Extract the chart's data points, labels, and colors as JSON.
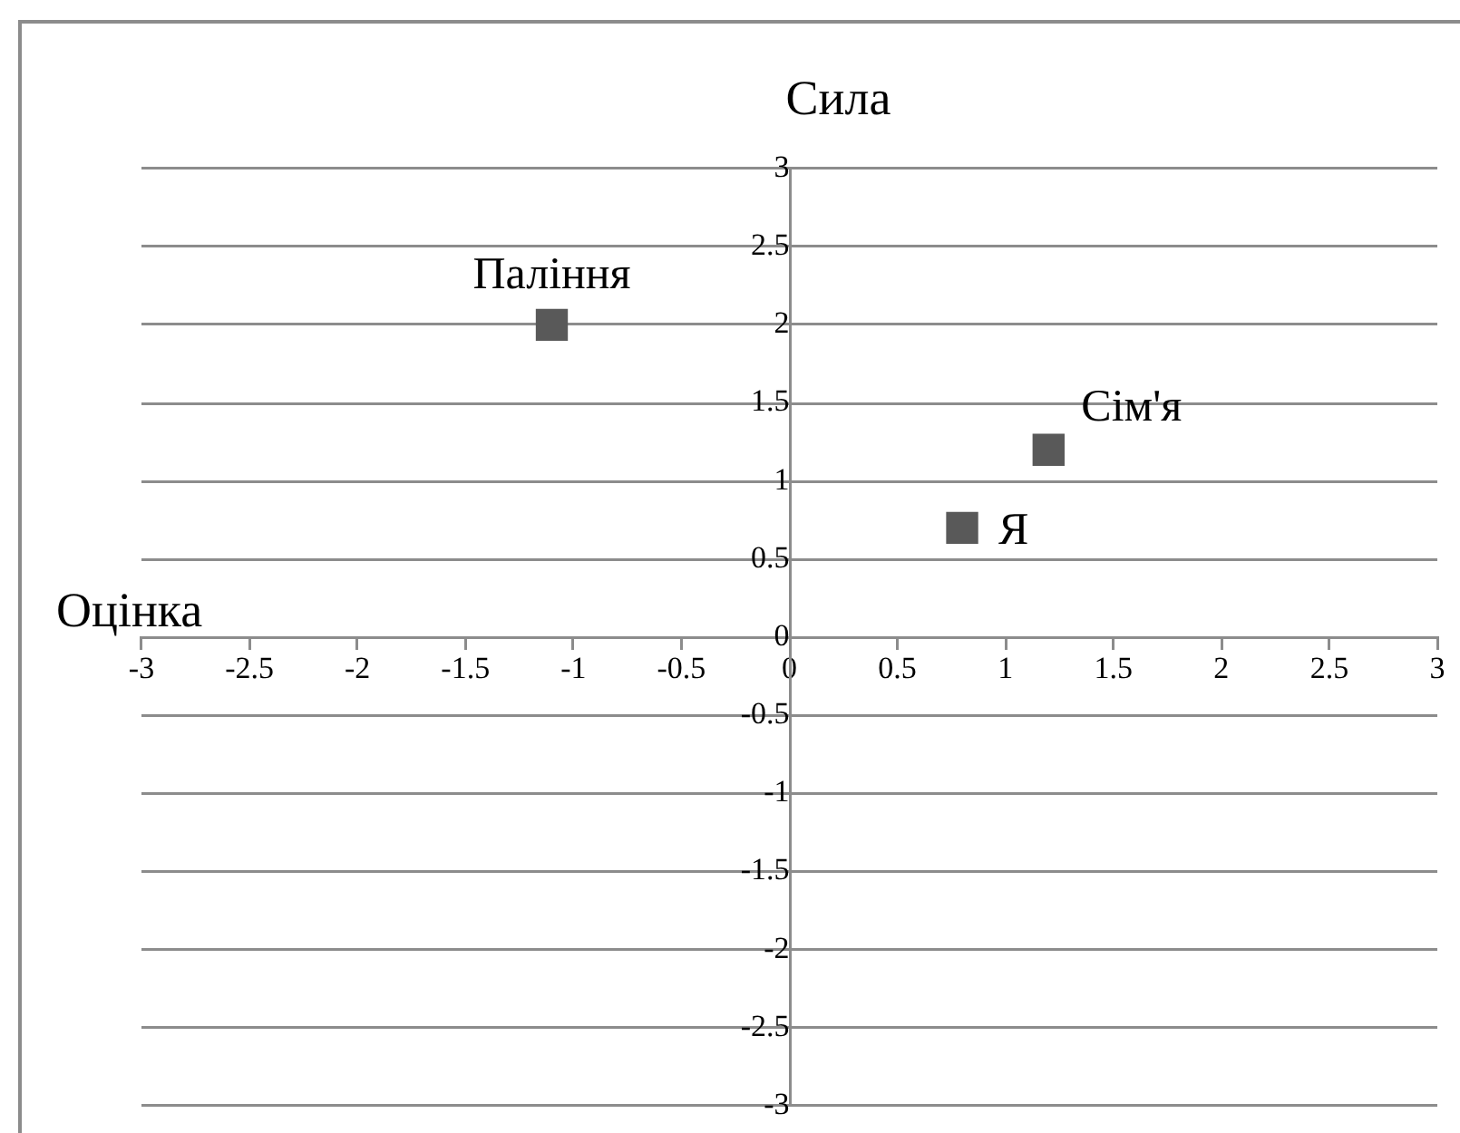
{
  "chart_data": {
    "type": "scatter",
    "xlabel": "Оцінка",
    "ylabel": "Сила",
    "series": [
      {
        "name": "Паління",
        "color": "#595959",
        "x": [
          -1.1
        ],
        "values": [
          2
        ]
      },
      {
        "name": "Сім'я",
        "color": "#595959",
        "x": [
          1.2
        ],
        "values": [
          1.2
        ]
      },
      {
        "name": "Я",
        "color": "#595959",
        "x": [
          0.8
        ],
        "values": [
          0.7
        ]
      }
    ],
    "xlim": [
      -3,
      3
    ],
    "ylim": [
      -3,
      3
    ],
    "xticks": [
      -3,
      -2.5,
      -2,
      -1.5,
      -1,
      -0.5,
      0,
      0.5,
      1,
      1.5,
      2,
      2.5,
      3
    ],
    "yticks": [
      -3,
      -2.5,
      -2,
      -1.5,
      -1,
      -0.5,
      0,
      0.5,
      1,
      1.5,
      2,
      2.5,
      3
    ],
    "grid": "y",
    "marker": "square",
    "legend": false
  }
}
